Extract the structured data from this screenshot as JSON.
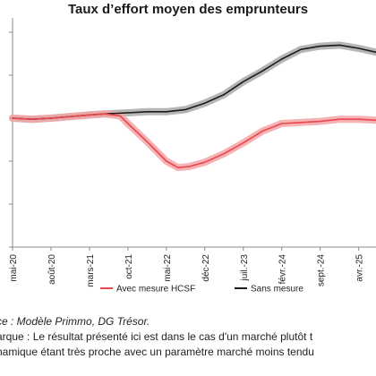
{
  "chart_data": {
    "type": "line",
    "title": "Taux d’effort moyen des emprunteurs",
    "xlabel": "",
    "ylabel": "",
    "x_ticks": [
      "mai-20",
      "août-20",
      "mars-21",
      "oct-21",
      "mai-22",
      "déc-22",
      "juil.-23",
      "févr.-24",
      "sept.-24",
      "avr.-25"
    ],
    "legend_position": "bottom",
    "grid": false,
    "series": [
      {
        "name": "Avec mesure HCSF",
        "color": "#e8474c",
        "band_color": "#f4a6a8",
        "points": [
          [
            0,
            0.6
          ],
          [
            0.5,
            0.595
          ],
          [
            1,
            0.6
          ],
          [
            2,
            0.615
          ],
          [
            2.4,
            0.62
          ],
          [
            2.8,
            0.61
          ],
          [
            3,
            0.575
          ],
          [
            3.5,
            0.49
          ],
          [
            4,
            0.4
          ],
          [
            4.3,
            0.37
          ],
          [
            4.6,
            0.375
          ],
          [
            5,
            0.395
          ],
          [
            5.5,
            0.435
          ],
          [
            6,
            0.485
          ],
          [
            6.5,
            0.54
          ],
          [
            7,
            0.575
          ],
          [
            7.5,
            0.58
          ],
          [
            8,
            0.585
          ],
          [
            8.5,
            0.595
          ],
          [
            9,
            0.595
          ],
          [
            9.5,
            0.59
          ],
          [
            10,
            0.595
          ]
        ]
      },
      {
        "name": "Sans mesure",
        "color": "#1a1a1a",
        "band_color": "#a9a9a9",
        "points": [
          [
            0,
            0.6
          ],
          [
            0.5,
            0.595
          ],
          [
            1,
            0.6
          ],
          [
            2,
            0.615
          ],
          [
            2.4,
            0.62
          ],
          [
            3,
            0.625
          ],
          [
            3.5,
            0.63
          ],
          [
            4,
            0.63
          ],
          [
            4.5,
            0.64
          ],
          [
            5,
            0.67
          ],
          [
            5.5,
            0.71
          ],
          [
            6,
            0.77
          ],
          [
            6.5,
            0.82
          ],
          [
            7,
            0.875
          ],
          [
            7.5,
            0.92
          ],
          [
            8,
            0.935
          ],
          [
            8.5,
            0.94
          ],
          [
            9,
            0.925
          ],
          [
            9.5,
            0.905
          ],
          [
            10,
            0.895
          ]
        ]
      }
    ]
  },
  "notes": {
    "source": "ce : Modèle Primmo, DG Trésor.",
    "remark_line1": "arque : Le résultat présenté ici est dans le cas d'un marché plutôt t",
    "remark_line2": "namique étant très proche avec un paramètre marché moins tendu"
  }
}
